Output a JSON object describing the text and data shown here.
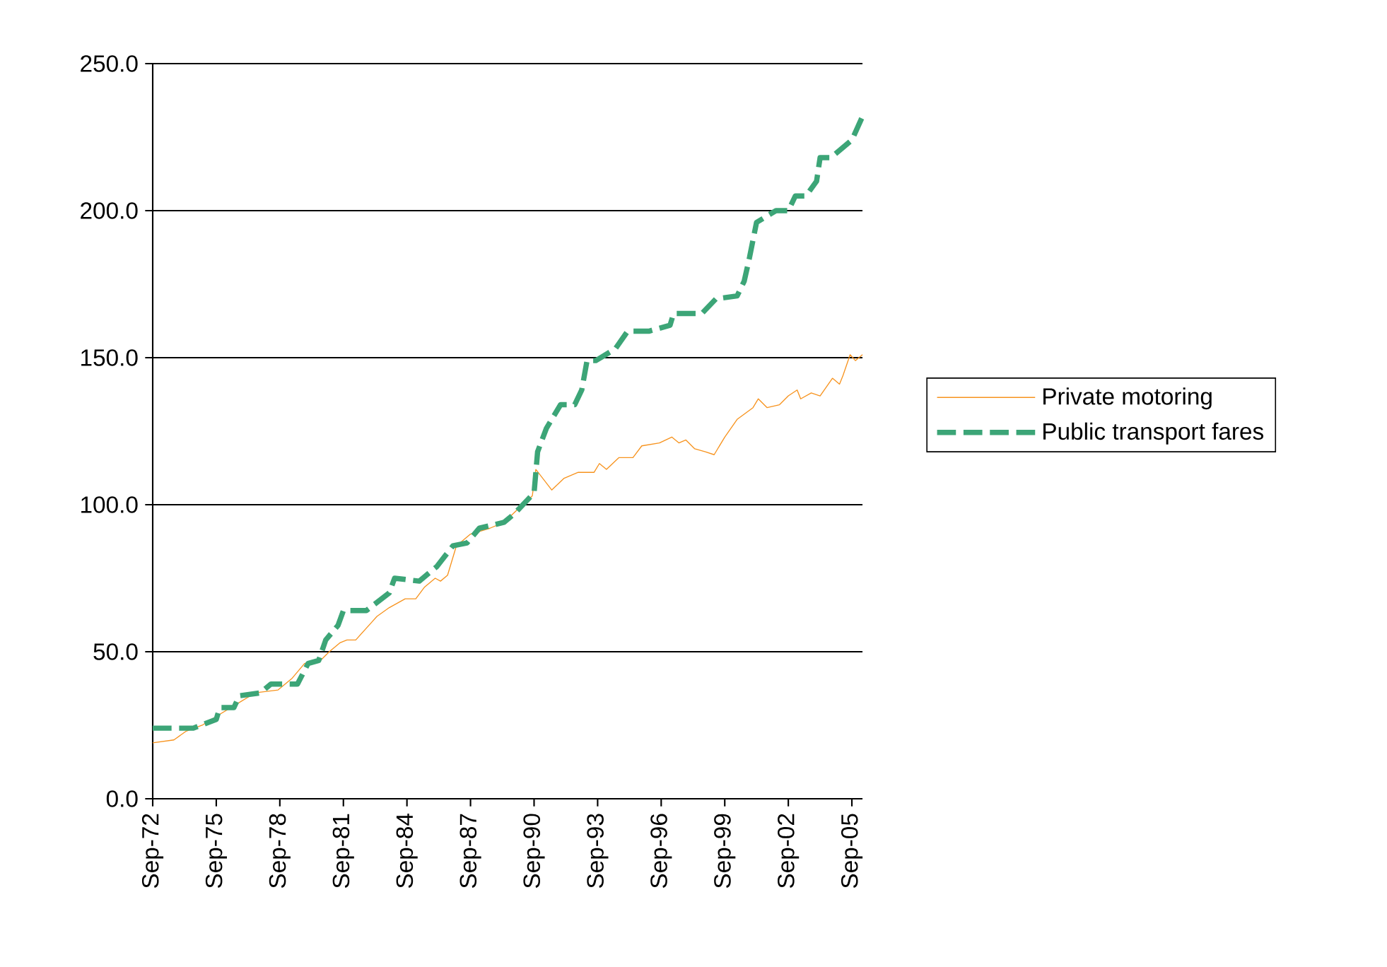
{
  "chart_data": {
    "type": "line",
    "xlim": [
      "1972-09",
      "2006-03"
    ],
    "xticks": [
      {
        "value": "1972-09",
        "label": "Sep-72"
      },
      {
        "value": "1975-09",
        "label": "Sep-75"
      },
      {
        "value": "1978-09",
        "label": "Sep-78"
      },
      {
        "value": "1981-09",
        "label": "Sep-81"
      },
      {
        "value": "1984-09",
        "label": "Sep-84"
      },
      {
        "value": "1987-09",
        "label": "Sep-87"
      },
      {
        "value": "1990-09",
        "label": "Sep-90"
      },
      {
        "value": "1993-09",
        "label": "Sep-93"
      },
      {
        "value": "1996-09",
        "label": "Sep-96"
      },
      {
        "value": "1999-09",
        "label": "Sep-99"
      },
      {
        "value": "2002-09",
        "label": "Sep-02"
      },
      {
        "value": "2005-09",
        "label": "Sep-05"
      }
    ],
    "ylim": [
      0,
      250
    ],
    "yticks": [
      {
        "value": 0,
        "label": "0.0"
      },
      {
        "value": 50,
        "label": "50.0"
      },
      {
        "value": 100,
        "label": "100.0"
      },
      {
        "value": 150,
        "label": "150.0"
      },
      {
        "value": 200,
        "label": "200.0"
      },
      {
        "value": 250,
        "label": "250.0"
      }
    ],
    "grid": "y",
    "legend": "right",
    "marker": "none",
    "series": [
      {
        "name": "Private motoring",
        "color": "#f7931e",
        "line_style": "solid",
        "x": [
          "1972-09",
          "1973-09",
          "1974-04",
          "1975-01",
          "1975-09",
          "1976-08",
          "1977-07",
          "1978-08",
          "1979-04",
          "1979-11",
          "1980-08",
          "1981-01",
          "1981-07",
          "1981-11",
          "1982-04",
          "1983-01",
          "1983-04",
          "1983-11",
          "1984-08",
          "1985-02",
          "1985-07",
          "1986-01",
          "1986-04",
          "1986-08",
          "1987-01",
          "1987-09",
          "1988-08",
          "1989-04",
          "1989-11",
          "1990-08",
          "1990-10",
          "1991-07",
          "1992-02",
          "1992-10",
          "1993-07",
          "1993-10",
          "1994-02",
          "1994-09",
          "1995-05",
          "1995-10",
          "1996-08",
          "1997-03",
          "1997-07",
          "1997-11",
          "1998-04",
          "1998-10",
          "1999-03",
          "1999-09",
          "2000-04",
          "2001-01",
          "2001-04",
          "2001-09",
          "2002-04",
          "2002-09",
          "2003-02",
          "2003-04",
          "2003-10",
          "2004-03",
          "2004-10",
          "2005-02",
          "2005-04",
          "2005-08",
          "2005-11",
          "2006-03"
        ],
        "values": [
          19,
          20,
          23,
          25,
          28,
          32,
          36,
          37,
          41,
          46,
          47,
          50,
          53,
          54,
          54,
          60,
          62,
          65,
          68,
          68,
          72,
          75,
          74,
          76,
          86,
          90,
          92,
          94,
          98,
          103,
          112,
          105,
          109,
          111,
          111,
          114,
          112,
          116,
          116,
          120,
          121,
          123,
          121,
          122,
          119,
          118,
          117,
          123,
          129,
          133,
          136,
          133,
          134,
          137,
          139,
          136,
          138,
          137,
          143,
          141,
          144,
          151,
          149,
          151
        ]
      },
      {
        "name": "Public transport fares",
        "color": "#3ca577",
        "line_style": "dashed",
        "x": [
          "1972-09",
          "1974-08",
          "1975-09",
          "1975-11",
          "1976-07",
          "1976-10",
          "1977-10",
          "1978-04",
          "1979-07",
          "1980-01",
          "1980-07",
          "1980-11",
          "1981-06",
          "1981-09",
          "1982-10",
          "1983-11",
          "1984-02",
          "1985-04",
          "1986-02",
          "1986-11",
          "1987-07",
          "1988-02",
          "1989-04",
          "1989-10",
          "1990-09",
          "1990-11",
          "1991-04",
          "1991-12",
          "1992-08",
          "1992-12",
          "1993-03",
          "1993-08",
          "1994-07",
          "1995-02",
          "1996-02",
          "1997-02",
          "1997-04",
          "1998-08",
          "1999-04",
          "2000-04",
          "2000-08",
          "2000-11",
          "2001-03",
          "2002-02",
          "2002-09",
          "2003-01",
          "2003-07",
          "2004-01",
          "2004-03",
          "2004-09",
          "2005-09",
          "2006-03"
        ],
        "values": [
          24,
          24,
          27,
          31,
          31,
          35,
          36,
          39,
          39,
          46,
          47,
          54,
          59,
          64,
          64,
          70,
          75,
          74,
          79,
          86,
          87,
          92,
          94,
          97,
          104,
          118,
          126,
          134,
          134,
          139,
          149,
          149,
          153,
          159,
          159,
          161,
          165,
          165,
          170,
          171,
          176,
          184,
          196,
          200,
          200,
          205,
          205,
          210,
          218,
          218,
          224,
          232
        ]
      }
    ]
  }
}
